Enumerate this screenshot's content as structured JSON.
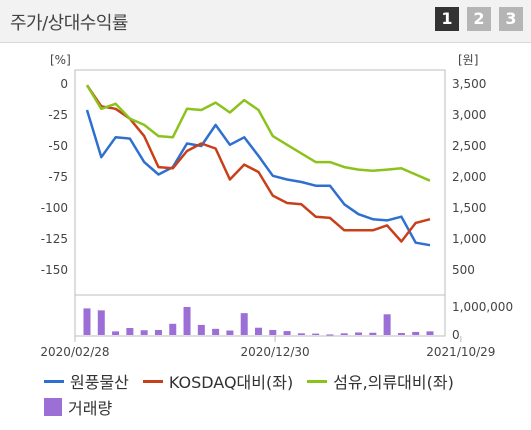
{
  "header": {
    "title": "주가/상대수익률",
    "tabs": [
      "1",
      "2",
      "3"
    ],
    "active_tab": 0
  },
  "chart_data": {
    "type": "line",
    "left_unit": "[%]",
    "right_unit": "[원]",
    "left_ticks": [
      "0",
      "-25",
      "-50",
      "-75",
      "-100",
      "-125",
      "-150"
    ],
    "left_values": [
      0,
      -25,
      -50,
      -75,
      -100,
      -125,
      -150
    ],
    "right_ticks": [
      "3,500",
      "3,000",
      "2,500",
      "2,000",
      "1,500",
      "1,000",
      "500"
    ],
    "right_values": [
      3500,
      3000,
      2500,
      2000,
      1500,
      1000,
      500
    ],
    "ylim_left": [
      -150,
      0
    ],
    "volume_ticks": [
      "1,000,000",
      "0"
    ],
    "volume_max": 1000000,
    "x_labels": [
      "2020/02/28",
      "2020/12/30",
      "2021/10/29"
    ],
    "x_label_index": [
      0,
      14,
      27
    ],
    "series": [
      {
        "name": "원풍물산",
        "color": "#2e6fd0",
        "values": [
          -21,
          -59,
          -43,
          -44,
          -63,
          -73,
          -67,
          -48,
          -50,
          -33,
          -49,
          -43,
          -58,
          -74,
          -77,
          -79,
          -82,
          -82,
          -97,
          -105,
          -109,
          -110,
          -107,
          -128,
          -130
        ]
      },
      {
        "name": "KOSDAQ대비(좌)",
        "color": "#c8401a",
        "values": [
          -1,
          -18,
          -20,
          -28,
          -42,
          -67,
          -68,
          -54,
          -48,
          -52,
          -77,
          -65,
          -71,
          -90,
          -96,
          -97,
          -107,
          -108,
          -118,
          -118,
          -118,
          -114,
          -127,
          -112,
          -109
        ]
      },
      {
        "name": "섬유,의류대비(좌)",
        "color": "#8cc21c",
        "values": [
          -1,
          -20,
          -16,
          -28,
          -33,
          -42,
          -43,
          -20,
          -21,
          -15,
          -23,
          -13,
          -21,
          -42,
          -49,
          -56,
          -63,
          -63,
          -67,
          -69,
          -70,
          -69,
          -68,
          -73,
          -78
        ]
      }
    ],
    "volume": {
      "name": "거래량",
      "color": "#9b6fd6",
      "values": [
        950000,
        880000,
        130000,
        250000,
        170000,
        180000,
        400000,
        1000000,
        360000,
        220000,
        160000,
        780000,
        260000,
        180000,
        140000,
        60000,
        50000,
        20000,
        60000,
        90000,
        80000,
        740000,
        70000,
        110000,
        130000
      ]
    }
  }
}
